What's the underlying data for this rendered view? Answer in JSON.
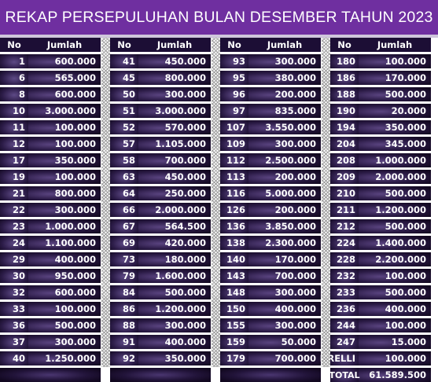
{
  "title": "REKAP PERSEPULUHAN BULAN DESEMBER TAHUN 2023",
  "header": {
    "no": "No",
    "jumlah": "Jumlah"
  },
  "columns": [
    {
      "rows": [
        {
          "no": "1",
          "jumlah": "600.000"
        },
        {
          "no": "6",
          "jumlah": "565.000"
        },
        {
          "no": "8",
          "jumlah": "600.000"
        },
        {
          "no": "10",
          "jumlah": "3.000.000"
        },
        {
          "no": "11",
          "jumlah": "100.000"
        },
        {
          "no": "12",
          "jumlah": "100.000"
        },
        {
          "no": "17",
          "jumlah": "350.000"
        },
        {
          "no": "19",
          "jumlah": "100.000"
        },
        {
          "no": "21",
          "jumlah": "800.000"
        },
        {
          "no": "22",
          "jumlah": "300.000"
        },
        {
          "no": "23",
          "jumlah": "1.000.000"
        },
        {
          "no": "24",
          "jumlah": "1.100.000"
        },
        {
          "no": "29",
          "jumlah": "400.000"
        },
        {
          "no": "30",
          "jumlah": "950.000"
        },
        {
          "no": "32",
          "jumlah": "600.000"
        },
        {
          "no": "33",
          "jumlah": "100.000"
        },
        {
          "no": "36",
          "jumlah": "500.000"
        },
        {
          "no": "37",
          "jumlah": "300.000"
        },
        {
          "no": "40",
          "jumlah": "1.250.000"
        }
      ]
    },
    {
      "rows": [
        {
          "no": "41",
          "jumlah": "450.000"
        },
        {
          "no": "45",
          "jumlah": "800.000"
        },
        {
          "no": "50",
          "jumlah": "300.000"
        },
        {
          "no": "51",
          "jumlah": "3.000.000"
        },
        {
          "no": "52",
          "jumlah": "570.000"
        },
        {
          "no": "57",
          "jumlah": "1.105.000"
        },
        {
          "no": "58",
          "jumlah": "700.000"
        },
        {
          "no": "63",
          "jumlah": "450.000"
        },
        {
          "no": "64",
          "jumlah": "250.000"
        },
        {
          "no": "66",
          "jumlah": "2.000.000"
        },
        {
          "no": "67",
          "jumlah": "564.500"
        },
        {
          "no": "69",
          "jumlah": "420.000"
        },
        {
          "no": "73",
          "jumlah": "180.000"
        },
        {
          "no": "79",
          "jumlah": "1.600.000"
        },
        {
          "no": "84",
          "jumlah": "500.000"
        },
        {
          "no": "86",
          "jumlah": "1.200.000"
        },
        {
          "no": "88",
          "jumlah": "300.000"
        },
        {
          "no": "91",
          "jumlah": "400.000"
        },
        {
          "no": "92",
          "jumlah": "350.000"
        }
      ]
    },
    {
      "rows": [
        {
          "no": "93",
          "jumlah": "300.000"
        },
        {
          "no": "95",
          "jumlah": "380.000"
        },
        {
          "no": "96",
          "jumlah": "200.000"
        },
        {
          "no": "97",
          "jumlah": "835.000"
        },
        {
          "no": "107",
          "jumlah": "3.550.000"
        },
        {
          "no": "109",
          "jumlah": "300.000"
        },
        {
          "no": "112",
          "jumlah": "2.500.000"
        },
        {
          "no": "113",
          "jumlah": "200.000"
        },
        {
          "no": "116",
          "jumlah": "5.000.000"
        },
        {
          "no": "126",
          "jumlah": "200.000"
        },
        {
          "no": "136",
          "jumlah": "3.850.000"
        },
        {
          "no": "138",
          "jumlah": "2.300.000"
        },
        {
          "no": "140",
          "jumlah": "170.000"
        },
        {
          "no": "143",
          "jumlah": "700.000"
        },
        {
          "no": "148",
          "jumlah": "300.000"
        },
        {
          "no": "150",
          "jumlah": "400.000"
        },
        {
          "no": "155",
          "jumlah": "300.000"
        },
        {
          "no": "159",
          "jumlah": "50.000"
        },
        {
          "no": "179",
          "jumlah": "700.000"
        }
      ]
    },
    {
      "rows": [
        {
          "no": "180",
          "jumlah": "100.000"
        },
        {
          "no": "186",
          "jumlah": "170.000"
        },
        {
          "no": "188",
          "jumlah": "500.000"
        },
        {
          "no": "190",
          "jumlah": "20.000"
        },
        {
          "no": "194",
          "jumlah": "350.000"
        },
        {
          "no": "204",
          "jumlah": "345.000"
        },
        {
          "no": "208",
          "jumlah": "1.000.000"
        },
        {
          "no": "209",
          "jumlah": "2.000.000"
        },
        {
          "no": "210",
          "jumlah": "500.000"
        },
        {
          "no": "211",
          "jumlah": "1.200.000"
        },
        {
          "no": "212",
          "jumlah": "500.000"
        },
        {
          "no": "224",
          "jumlah": "1.400.000"
        },
        {
          "no": "228",
          "jumlah": "2.200.000"
        },
        {
          "no": "232",
          "jumlah": "100.000"
        },
        {
          "no": "233",
          "jumlah": "500.000"
        },
        {
          "no": "236",
          "jumlah": "400.000"
        },
        {
          "no": "244",
          "jumlah": "100.000"
        },
        {
          "no": "247",
          "jumlah": "15.000"
        },
        {
          "no": "DRELLI",
          "jumlah": "100.000"
        }
      ]
    }
  ],
  "total": {
    "label": "TOTAL",
    "value": "61.589.500"
  },
  "colors": {
    "title_bg": "#6f2fa0",
    "cell_dark": "#1c0e35",
    "cell_glow": "#5a4480"
  }
}
